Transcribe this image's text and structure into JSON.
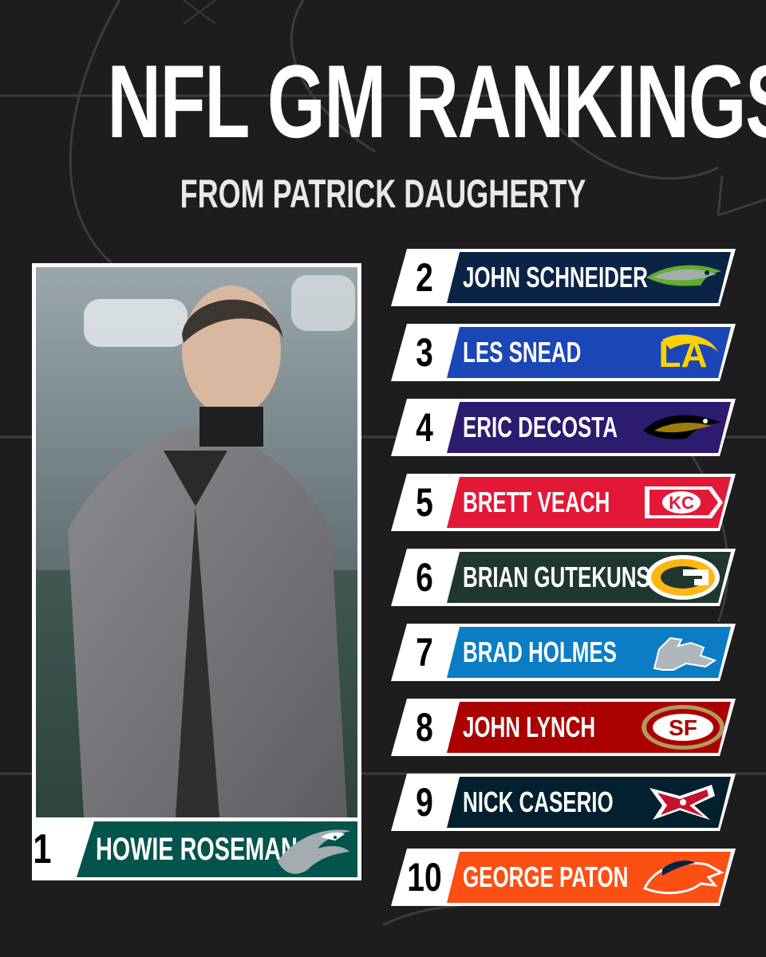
{
  "header": {
    "title": "NFL GM RANKINGS",
    "subtitle": "FROM PATRICK DAUGHERTY"
  },
  "featured": {
    "rank": "1",
    "name": "HOWIE ROSEMAN",
    "team_logo": "eagles-logo",
    "color": "#03544c"
  },
  "rankings": [
    {
      "rank": "2",
      "name": "JOHN SCHNEIDER",
      "team_logo": "seahawks-logo",
      "color": "#0b2446"
    },
    {
      "rank": "3",
      "name": "LES SNEAD",
      "team_logo": "rams-logo",
      "color": "#1a46b8"
    },
    {
      "rank": "4",
      "name": "ERIC DECOSTA",
      "team_logo": "ravens-logo",
      "color": "#2c1b6e"
    },
    {
      "rank": "5",
      "name": "BRETT VEACH",
      "team_logo": "chiefs-logo",
      "color": "#e31837"
    },
    {
      "rank": "6",
      "name": "BRIAN GUTEKUNST",
      "team_logo": "packers-logo",
      "color": "#203731"
    },
    {
      "rank": "7",
      "name": "BRAD HOLMES",
      "team_logo": "lions-logo",
      "color": "#0a7dc4"
    },
    {
      "rank": "8",
      "name": "JOHN LYNCH",
      "team_logo": "49ers-logo",
      "color": "#aa0000"
    },
    {
      "rank": "9",
      "name": "NICK CASERIO",
      "team_logo": "texans-logo",
      "color": "#03202f"
    },
    {
      "rank": "10",
      "name": "GEORGE PATON",
      "team_logo": "broncos-logo",
      "color": "#fb4f14"
    }
  ]
}
